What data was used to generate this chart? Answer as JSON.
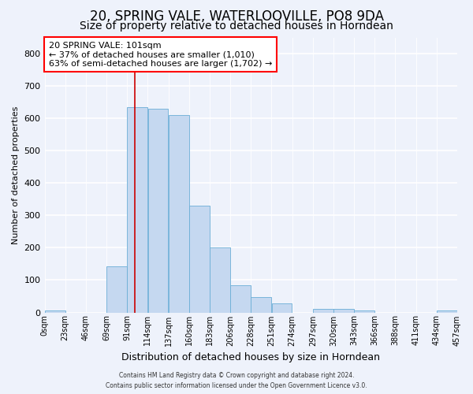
{
  "title": "20, SPRING VALE, WATERLOOVILLE, PO8 9DA",
  "subtitle": "Size of property relative to detached houses in Horndean",
  "xlabel": "Distribution of detached houses by size in Horndean",
  "ylabel": "Number of detached properties",
  "footer_line1": "Contains HM Land Registry data © Crown copyright and database right 2024.",
  "footer_line2": "Contains public sector information licensed under the Open Government Licence v3.0.",
  "annotation_line1": "20 SPRING VALE: 101sqm",
  "annotation_line2": "← 37% of detached houses are smaller (1,010)",
  "annotation_line3": "63% of semi-detached houses are larger (1,702) →",
  "bar_color": "#c5d8f0",
  "bar_edge_color": "#6baed6",
  "vline_color": "#cc0000",
  "vline_x": 101,
  "bin_edges": [
    0,
    23,
    46,
    69,
    92,
    115,
    138,
    161,
    184,
    207,
    230,
    253,
    276,
    299,
    322,
    345,
    368,
    391,
    414,
    437,
    460
  ],
  "bin_labels": [
    "0sqm",
    "23sqm",
    "46sqm",
    "69sqm",
    "91sqm",
    "114sqm",
    "137sqm",
    "160sqm",
    "183sqm",
    "206sqm",
    "228sqm",
    "251sqm",
    "274sqm",
    "297sqm",
    "320sqm",
    "343sqm",
    "366sqm",
    "388sqm",
    "411sqm",
    "434sqm",
    "457sqm"
  ],
  "bar_heights": [
    5,
    0,
    0,
    142,
    635,
    630,
    609,
    330,
    200,
    84,
    47,
    29,
    0,
    11,
    11,
    5,
    0,
    0,
    0,
    5
  ],
  "ylim": [
    0,
    850
  ],
  "yticks": [
    0,
    100,
    200,
    300,
    400,
    500,
    600,
    700,
    800
  ],
  "background_color": "#eef2fb",
  "plot_bg_color": "#eef2fb",
  "grid_color": "#ffffff",
  "title_fontsize": 12,
  "subtitle_fontsize": 10
}
